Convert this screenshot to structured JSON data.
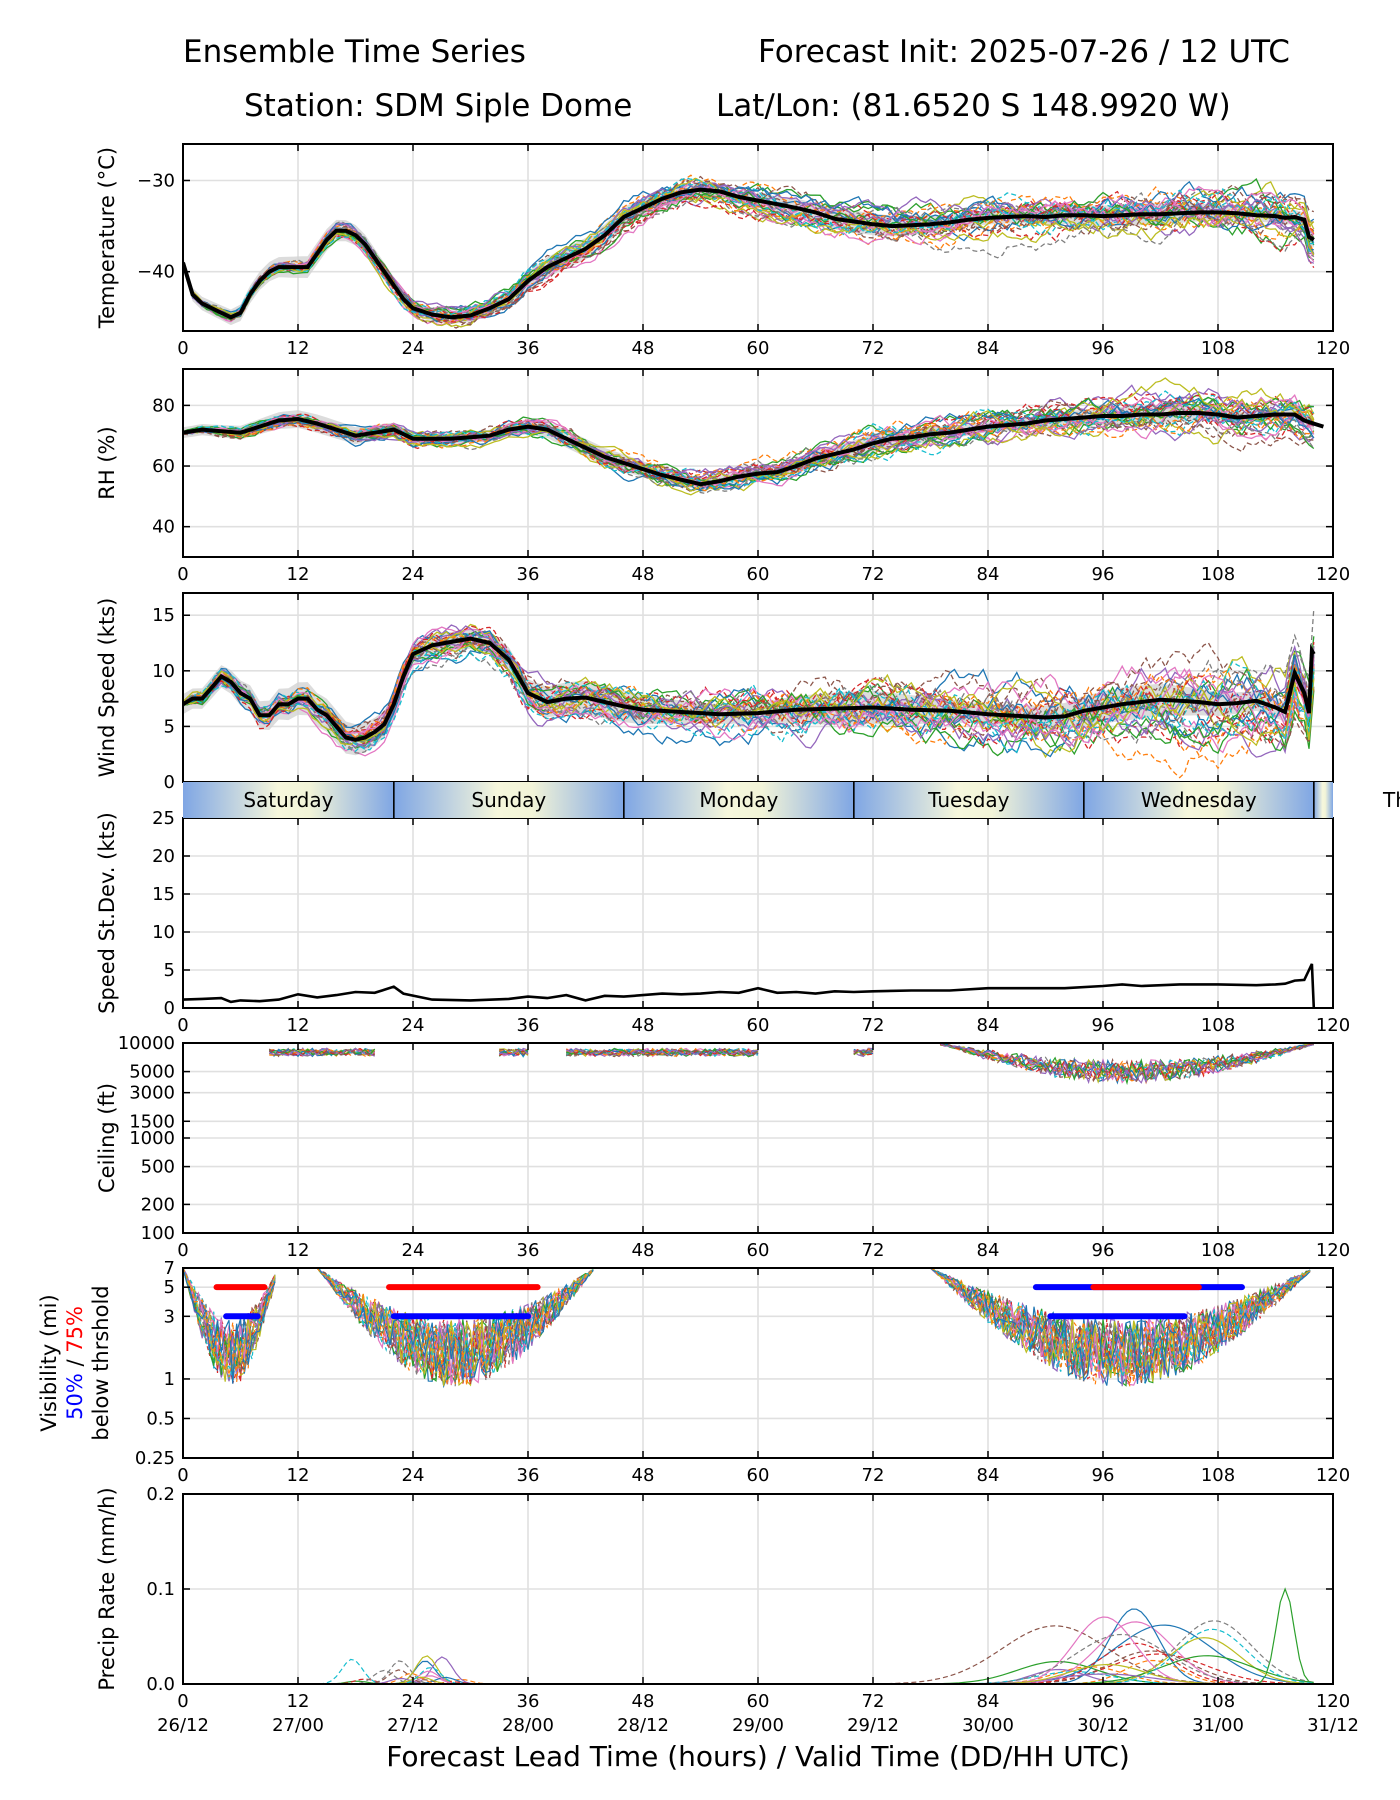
{
  "header": {
    "title_left": "Ensemble Time Series",
    "title_right": "Forecast Init: 2025-07-26 / 12 UTC",
    "station": "Station: SDM  Siple Dome",
    "latlon": "Lat/Lon: (81.6520 S 148.9920 W)"
  },
  "colors": {
    "mean_line": "#000000",
    "spread_fill": "#d3d3d3",
    "vis50_bar": "#0000ff",
    "vis75_bar": "#ff0000",
    "ensemble_palette": [
      "#1f77b4",
      "#ff7f0e",
      "#2ca02c",
      "#d62728",
      "#9467bd",
      "#8c564b",
      "#e377c2",
      "#7f7f7f",
      "#bcbd22",
      "#17becf"
    ]
  },
  "chart_data": {
    "type": "line",
    "x_ticks": [
      0,
      12,
      24,
      36,
      48,
      60,
      72,
      84,
      96,
      108,
      120
    ],
    "x_range": [
      0,
      120
    ],
    "valid_time_labels": [
      "26/12",
      "27/00",
      "27/12",
      "28/00",
      "28/12",
      "29/00",
      "29/12",
      "30/00",
      "30/12",
      "31/00",
      "31/12"
    ],
    "xlabel": "Forecast Lead Time (hours) / Valid Time (DD/HH UTC)",
    "day_band": {
      "days": [
        "Saturday",
        "Sunday",
        "Monday",
        "Tuesday",
        "Wednesday",
        "Th"
      ],
      "boundaries_hours": [
        0,
        22,
        46,
        70,
        94,
        118
      ]
    },
    "panels": [
      {
        "key": "temperature",
        "ylabel": "Temperature (°C)",
        "ylim": [
          -46.5,
          -26
        ],
        "yticks": [
          -30,
          -40
        ],
        "ytick_labels": [
          "−30",
          "−40"
        ],
        "mean": [
          [
            0,
            -39
          ],
          [
            1,
            -42.5
          ],
          [
            2,
            -43.5
          ],
          [
            4,
            -44.5
          ],
          [
            5,
            -45
          ],
          [
            6,
            -44.5
          ],
          [
            7,
            -42.5
          ],
          [
            8,
            -41
          ],
          [
            9,
            -40
          ],
          [
            10,
            -39.5
          ],
          [
            11,
            -39.5
          ],
          [
            12,
            -39.5
          ],
          [
            13,
            -39.5
          ],
          [
            14,
            -38
          ],
          [
            15,
            -36.5
          ],
          [
            16,
            -35.5
          ],
          [
            17,
            -35.5
          ],
          [
            18,
            -36
          ],
          [
            19,
            -37
          ],
          [
            20,
            -38.5
          ],
          [
            21,
            -40
          ],
          [
            22,
            -41.5
          ],
          [
            23,
            -43
          ],
          [
            24,
            -44
          ],
          [
            26,
            -44.7
          ],
          [
            28,
            -45
          ],
          [
            30,
            -44.8
          ],
          [
            32,
            -44
          ],
          [
            34,
            -43
          ],
          [
            36,
            -41
          ],
          [
            38,
            -39.5
          ],
          [
            40,
            -38.5
          ],
          [
            42,
            -37.5
          ],
          [
            44,
            -36
          ],
          [
            46,
            -34
          ],
          [
            48,
            -33
          ],
          [
            50,
            -32
          ],
          [
            52,
            -31.3
          ],
          [
            54,
            -31
          ],
          [
            56,
            -31.2
          ],
          [
            58,
            -31.8
          ],
          [
            60,
            -32.2
          ],
          [
            62,
            -32.6
          ],
          [
            64,
            -33
          ],
          [
            66,
            -33.5
          ],
          [
            68,
            -34.2
          ],
          [
            70,
            -34.5
          ],
          [
            72,
            -34.8
          ],
          [
            74,
            -35
          ],
          [
            76,
            -34.9
          ],
          [
            78,
            -34.8
          ],
          [
            80,
            -34.6
          ],
          [
            82,
            -34.3
          ],
          [
            84,
            -34.1
          ],
          [
            86,
            -34
          ],
          [
            88,
            -33.9
          ],
          [
            90,
            -34
          ],
          [
            92,
            -33.8
          ],
          [
            94,
            -33.8
          ],
          [
            96,
            -33.9
          ],
          [
            98,
            -33.8
          ],
          [
            100,
            -33.7
          ],
          [
            102,
            -33.7
          ],
          [
            104,
            -33.6
          ],
          [
            106,
            -33.5
          ],
          [
            108,
            -33.5
          ],
          [
            110,
            -33.6
          ],
          [
            112,
            -33.8
          ],
          [
            114,
            -33.9
          ],
          [
            115,
            -34.1
          ],
          [
            116,
            -34.0
          ],
          [
            117,
            -34.3
          ],
          [
            117.5,
            -36.2
          ],
          [
            118,
            -36.5
          ]
        ],
        "spread": 1.2,
        "member_amp": 1.5
      },
      {
        "key": "rh",
        "ylabel": "RH (%)",
        "ylim": [
          30,
          92
        ],
        "yticks": [
          40,
          60,
          80
        ],
        "ytick_labels": [
          "40",
          "60",
          "80"
        ],
        "mean": [
          [
            0,
            71
          ],
          [
            2,
            72
          ],
          [
            4,
            71.5
          ],
          [
            6,
            71
          ],
          [
            8,
            73
          ],
          [
            10,
            75
          ],
          [
            12,
            75.5
          ],
          [
            14,
            74
          ],
          [
            16,
            72
          ],
          [
            18,
            70
          ],
          [
            20,
            71
          ],
          [
            22,
            72
          ],
          [
            24,
            69
          ],
          [
            26,
            69
          ],
          [
            28,
            69
          ],
          [
            30,
            69.5
          ],
          [
            32,
            70
          ],
          [
            34,
            72
          ],
          [
            36,
            73
          ],
          [
            38,
            72
          ],
          [
            40,
            69
          ],
          [
            42,
            66
          ],
          [
            44,
            63
          ],
          [
            46,
            61
          ],
          [
            48,
            59
          ],
          [
            50,
            57
          ],
          [
            52,
            55.5
          ],
          [
            54,
            54
          ],
          [
            56,
            55
          ],
          [
            58,
            56.5
          ],
          [
            60,
            57.5
          ],
          [
            62,
            58
          ],
          [
            64,
            60
          ],
          [
            66,
            62.5
          ],
          [
            68,
            64
          ],
          [
            70,
            65.5
          ],
          [
            72,
            67.5
          ],
          [
            74,
            69
          ],
          [
            76,
            69.5
          ],
          [
            78,
            70.5
          ],
          [
            80,
            71
          ],
          [
            82,
            72
          ],
          [
            84,
            73
          ],
          [
            86,
            73.5
          ],
          [
            88,
            74
          ],
          [
            90,
            75
          ],
          [
            92,
            75.5
          ],
          [
            94,
            76
          ],
          [
            96,
            76.5
          ],
          [
            98,
            76.5
          ],
          [
            100,
            77
          ],
          [
            102,
            77
          ],
          [
            104,
            77.5
          ],
          [
            106,
            77.5
          ],
          [
            108,
            77
          ],
          [
            110,
            76
          ],
          [
            112,
            76.5
          ],
          [
            114,
            77
          ],
          [
            116,
            77
          ],
          [
            117,
            75
          ],
          [
            118,
            74
          ],
          [
            119,
            73
          ]
        ],
        "spread": 3,
        "member_amp": 4
      },
      {
        "key": "wind",
        "ylabel": "Wind Speed (kts)",
        "ylim": [
          0,
          17
        ],
        "yticks": [
          0,
          5,
          10,
          15
        ],
        "ytick_labels": [
          "0",
          "5",
          "10",
          "15"
        ],
        "mean": [
          [
            0,
            7
          ],
          [
            1,
            7.5
          ],
          [
            2,
            7.5
          ],
          [
            3,
            8.5
          ],
          [
            4,
            9.5
          ],
          [
            5,
            9
          ],
          [
            6,
            8
          ],
          [
            7,
            7.5
          ],
          [
            8,
            6
          ],
          [
            9,
            6
          ],
          [
            10,
            7
          ],
          [
            11,
            7
          ],
          [
            12,
            7.5
          ],
          [
            13,
            7.5
          ],
          [
            14,
            6.5
          ],
          [
            15,
            6
          ],
          [
            16,
            5
          ],
          [
            17,
            4
          ],
          [
            18,
            3.8
          ],
          [
            19,
            4
          ],
          [
            20,
            4.5
          ],
          [
            21,
            5.2
          ],
          [
            22,
            7
          ],
          [
            23,
            9.5
          ],
          [
            24,
            11.5
          ],
          [
            26,
            12.3
          ],
          [
            28,
            12.6
          ],
          [
            30,
            12.9
          ],
          [
            32,
            12.5
          ],
          [
            34,
            11
          ],
          [
            35,
            9.5
          ],
          [
            36,
            8
          ],
          [
            38,
            7.2
          ],
          [
            40,
            7.5
          ],
          [
            42,
            7.6
          ],
          [
            44,
            7.2
          ],
          [
            46,
            6.8
          ],
          [
            48,
            6.5
          ],
          [
            52,
            6.3
          ],
          [
            56,
            6.1
          ],
          [
            60,
            6.2
          ],
          [
            64,
            6.5
          ],
          [
            68,
            6.6
          ],
          [
            72,
            6.7
          ],
          [
            76,
            6.5
          ],
          [
            80,
            6.4
          ],
          [
            84,
            6.1
          ],
          [
            88,
            5.9
          ],
          [
            90,
            5.8
          ],
          [
            92,
            5.9
          ],
          [
            94,
            6.4
          ],
          [
            96,
            6.7
          ],
          [
            98,
            7
          ],
          [
            100,
            7.2
          ],
          [
            102,
            7.4
          ],
          [
            104,
            7.3
          ],
          [
            106,
            7.2
          ],
          [
            108,
            7
          ],
          [
            110,
            7.1
          ],
          [
            112,
            7.3
          ],
          [
            114,
            6.7
          ],
          [
            115,
            6.3
          ],
          [
            116,
            9.8
          ],
          [
            117,
            8
          ],
          [
            117.5,
            6.2
          ],
          [
            117.8,
            11.8
          ],
          [
            118,
            11.5
          ]
        ],
        "spread": 1.5,
        "member_amp": 2
      },
      {
        "key": "sdev",
        "ylabel": "Speed St.Dev. (kts)",
        "ylim": [
          0,
          25
        ],
        "yticks": [
          0,
          5,
          10,
          15,
          20,
          25
        ],
        "ytick_labels": [
          "0",
          "5",
          "10",
          "15",
          "20",
          "25"
        ],
        "mean": [
          [
            0,
            1.1
          ],
          [
            2,
            1.2
          ],
          [
            4,
            1.3
          ],
          [
            5,
            0.8
          ],
          [
            6,
            1
          ],
          [
            8,
            0.9
          ],
          [
            10,
            1.1
          ],
          [
            12,
            1.8
          ],
          [
            14,
            1.4
          ],
          [
            16,
            1.7
          ],
          [
            18,
            2.1
          ],
          [
            20,
            2
          ],
          [
            21,
            2.4
          ],
          [
            22,
            2.8
          ],
          [
            23,
            1.9
          ],
          [
            26,
            1.1
          ],
          [
            30,
            1
          ],
          [
            34,
            1.2
          ],
          [
            36,
            1.5
          ],
          [
            38,
            1.3
          ],
          [
            40,
            1.7
          ],
          [
            42,
            1
          ],
          [
            44,
            1.6
          ],
          [
            46,
            1.5
          ],
          [
            48,
            1.7
          ],
          [
            50,
            1.9
          ],
          [
            52,
            1.8
          ],
          [
            54,
            1.9
          ],
          [
            56,
            2.1
          ],
          [
            58,
            2
          ],
          [
            60,
            2.6
          ],
          [
            62,
            2
          ],
          [
            64,
            2.1
          ],
          [
            66,
            1.9
          ],
          [
            68,
            2.2
          ],
          [
            70,
            2.1
          ],
          [
            72,
            2.2
          ],
          [
            76,
            2.3
          ],
          [
            80,
            2.3
          ],
          [
            84,
            2.6
          ],
          [
            88,
            2.6
          ],
          [
            92,
            2.6
          ],
          [
            96,
            2.9
          ],
          [
            98,
            3.1
          ],
          [
            100,
            2.9
          ],
          [
            104,
            3.1
          ],
          [
            108,
            3.1
          ],
          [
            112,
            3
          ],
          [
            114,
            3.1
          ],
          [
            115,
            3.2
          ],
          [
            116,
            3.6
          ],
          [
            117,
            3.7
          ],
          [
            117.5,
            5
          ],
          [
            117.8,
            5.8
          ],
          [
            118,
            0
          ]
        ]
      },
      {
        "key": "ceiling",
        "ylabel": "Ceiling (ft)",
        "ylim": [
          100,
          10000
        ],
        "log": true,
        "yticks": [
          100,
          200,
          500,
          1000,
          1500,
          3000,
          5000,
          10000
        ],
        "ytick_labels": [
          "100",
          "200",
          "500",
          "1000",
          "1500",
          "3000",
          "5000",
          "10000"
        ]
      },
      {
        "key": "visibility",
        "ylabel_lines": [
          "Visibility (mi)",
          "50% / 75%",
          "below thrshold"
        ],
        "ylabel_50": "50%",
        "ylabel_sep": " / ",
        "ylabel_75": "75%",
        "ylim": [
          0.25,
          7
        ],
        "log": true,
        "yticks": [
          0.25,
          0.5,
          1,
          3,
          5,
          7
        ],
        "ytick_labels": [
          "0.25",
          "0.5",
          "1",
          "3",
          "5",
          "7"
        ],
        "bars": [
          {
            "color": "red",
            "y": 5,
            "x0": 3.5,
            "x1": 8.5
          },
          {
            "color": "blue",
            "y": 3,
            "x0": 4.5,
            "x1": 7.8
          },
          {
            "color": "red",
            "y": 5,
            "x0": 21.5,
            "x1": 37
          },
          {
            "color": "blue",
            "y": 3,
            "x0": 22,
            "x1": 36
          },
          {
            "color": "blue",
            "y": 5,
            "x0": 89,
            "x1": 110.5
          },
          {
            "color": "red",
            "y": 5,
            "x0": 95,
            "x1": 106
          },
          {
            "color": "blue",
            "y": 3,
            "x0": 90.5,
            "x1": 104.5
          }
        ]
      },
      {
        "key": "precip",
        "ylabel": "Precip Rate (mm/h)",
        "ylim": [
          0,
          0.2
        ],
        "yticks": [
          0.0,
          0.1,
          0.2
        ],
        "ytick_labels": [
          "0.0",
          "0.1",
          "0.2"
        ]
      }
    ]
  }
}
